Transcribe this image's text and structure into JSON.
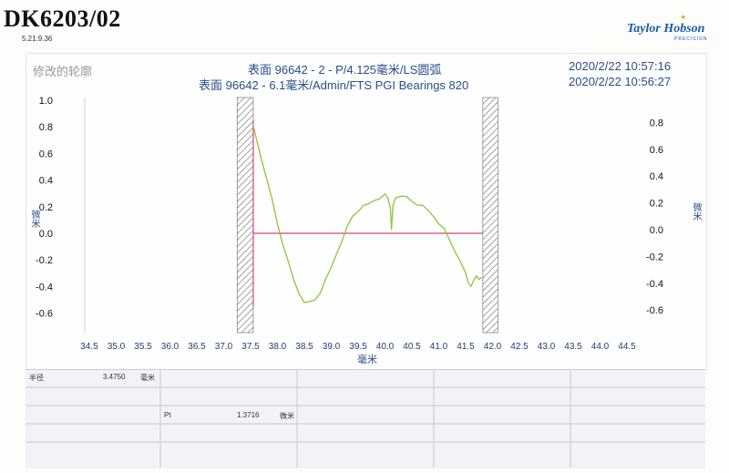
{
  "document": {
    "title": "DK6203/02",
    "subtitle": "5.21.9.36",
    "brand": "Taylor Hobson",
    "brand_sub": "PRECISION"
  },
  "header": {
    "left_label": "修改的轮廓",
    "line1": "表面 96642 - 2 - P/4.125毫米/LS圆弧",
    "line2": "表面 96642 - 6.1毫米/Admin/FTS PGI Bearings 820",
    "date1": "2020/2/22 10:57:16",
    "date2": "2020/2/22 10:56:27"
  },
  "chart_data": {
    "type": "line",
    "xlabel": "毫米",
    "ylabel_left": "微米",
    "ylabel_right": "微米",
    "xlim": [
      34.5,
      44.5
    ],
    "ylim_left": [
      -0.7,
      1.0
    ],
    "ylim_right": [
      -0.7,
      1.0
    ],
    "x_ticks": [
      "34.5",
      "35.0",
      "35.5",
      "36.0",
      "36.5",
      "37.0",
      "37.5",
      "38.0",
      "38.5",
      "39.0",
      "39.5",
      "40.0",
      "40.5",
      "41.0",
      "41.5",
      "42.0",
      "42.5",
      "43.0",
      "43.5",
      "44.0",
      "44.5"
    ],
    "y_ticks_left": [
      "1.0",
      "0.8",
      "0.6",
      "0.4",
      "0.2",
      "0.0",
      "-0.2",
      "-0.4",
      "-0.6"
    ],
    "y_ticks_left_values": [
      1.0,
      0.8,
      0.6,
      0.4,
      0.2,
      0.0,
      -0.2,
      -0.4,
      -0.6
    ],
    "y_ticks_right": [
      "0.8",
      "0.6",
      "0.4",
      "0.2",
      "0.0",
      "-0.2",
      "-0.4",
      "-0.6"
    ],
    "y_ticks_right_values": [
      0.8,
      0.6,
      0.4,
      0.2,
      0.0,
      -0.2,
      -0.4,
      -0.6
    ],
    "excluded_regions": [
      [
        37.25,
        37.55
      ],
      [
        41.82,
        42.1
      ]
    ],
    "reference_line_y": 0.0,
    "reference_line_x": [
      37.55,
      41.82
    ],
    "marker_x": 37.55,
    "series": [
      {
        "x": [
          37.55,
          37.6,
          37.7,
          37.8,
          37.9,
          38.0,
          38.1,
          38.2,
          38.3,
          38.4,
          38.5,
          38.6,
          38.7,
          38.8,
          38.9,
          39.0,
          39.1,
          39.2,
          39.3,
          39.4,
          39.5,
          39.6,
          39.7,
          39.8,
          39.9,
          40.0,
          40.05,
          40.1,
          40.12,
          40.15,
          40.2,
          40.3,
          40.4,
          40.5,
          40.6,
          40.7,
          40.8,
          40.9,
          41.0,
          41.1,
          41.2,
          41.3,
          41.4,
          41.5,
          41.55,
          41.6,
          41.65,
          41.7,
          41.75,
          41.8
        ],
        "y": [
          0.8,
          0.72,
          0.56,
          0.42,
          0.25,
          0.07,
          -0.08,
          -0.22,
          -0.35,
          -0.45,
          -0.51,
          -0.52,
          -0.5,
          -0.44,
          -0.35,
          -0.26,
          -0.15,
          -0.05,
          0.05,
          0.13,
          0.17,
          0.2,
          0.22,
          0.25,
          0.27,
          0.29,
          0.27,
          0.2,
          0.02,
          0.21,
          0.27,
          0.29,
          0.27,
          0.24,
          0.22,
          0.2,
          0.17,
          0.13,
          0.08,
          0.03,
          -0.05,
          -0.13,
          -0.22,
          -0.3,
          -0.37,
          -0.39,
          -0.36,
          -0.32,
          -0.34,
          -0.34
        ]
      }
    ]
  },
  "table": {
    "row1_label": "半径",
    "row1_value": "3.4750",
    "row1_unit": "毫米",
    "row2_label": "Pt",
    "row2_value": "1.3716",
    "row2_unit": "微米"
  },
  "colors": {
    "trace": "#8cc63e",
    "reference": "#d6428c",
    "axis_text": "#1f3f78",
    "hatch": "#888888"
  }
}
